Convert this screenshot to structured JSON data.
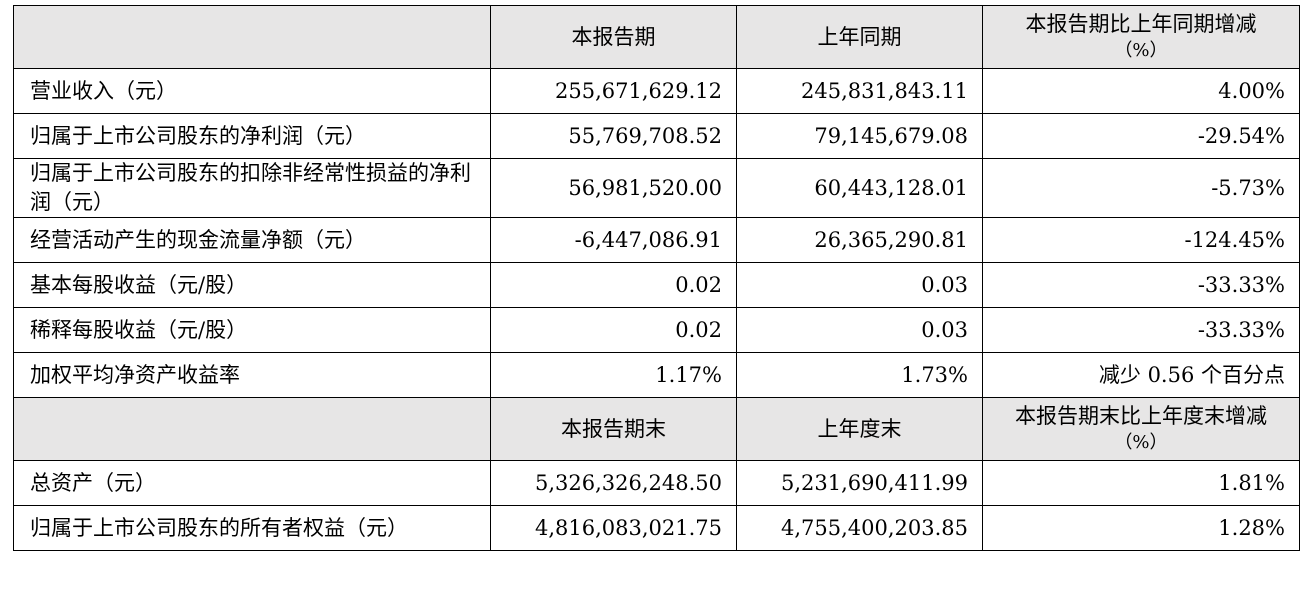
{
  "section1": {
    "header": {
      "col1": "本报告期",
      "col2": "上年同期",
      "col3_line1": "本报告期比上年同期增减",
      "col3_line2": "（%）"
    },
    "rows": [
      {
        "label": "营业收入（元）",
        "current": "255,671,629.12",
        "prior": "245,831,843.11",
        "change": "4.00%"
      },
      {
        "label": "归属于上市公司股东的净利润（元）",
        "current": "55,769,708.52",
        "prior": "79,145,679.08",
        "change": "-29.54%"
      },
      {
        "label": "归属于上市公司股东的扣除非经常性损益的净利润（元）",
        "current": "56,981,520.00",
        "prior": "60,443,128.01",
        "change": "-5.73%"
      },
      {
        "label": "经营活动产生的现金流量净额（元）",
        "current": "-6,447,086.91",
        "prior": "26,365,290.81",
        "change": "-124.45%"
      },
      {
        "label": "基本每股收益（元/股）",
        "current": "0.02",
        "prior": "0.03",
        "change": "-33.33%"
      },
      {
        "label": "稀释每股收益（元/股）",
        "current": "0.02",
        "prior": "0.03",
        "change": "-33.33%"
      },
      {
        "label": "加权平均净资产收益率",
        "current": "1.17%",
        "prior": "1.73%",
        "change": "减少 0.56 个百分点"
      }
    ]
  },
  "section2": {
    "header": {
      "col1": "本报告期末",
      "col2": "上年度末",
      "col3_line1": "本报告期末比上年度末增减",
      "col3_line2": "（%）"
    },
    "rows": [
      {
        "label": "总资产（元）",
        "current": "5,326,326,248.50",
        "prior": "5,231,690,411.99",
        "change": "1.81%"
      },
      {
        "label": "归属于上市公司股东的所有者权益（元）",
        "current": "4,816,083,021.75",
        "prior": "4,755,400,203.85",
        "change": "1.28%"
      }
    ]
  }
}
